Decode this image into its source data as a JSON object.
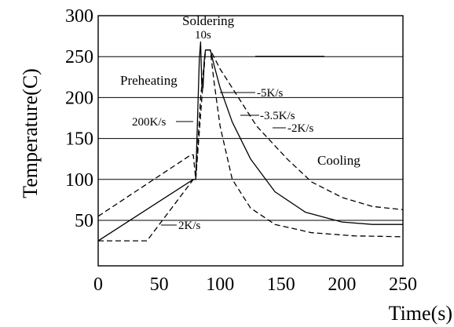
{
  "chart_data": {
    "type": "line",
    "xlabel": "Time(s)",
    "ylabel": "Temperature(C)",
    "xlim": [
      0,
      250
    ],
    "ylim": [
      25,
      300
    ],
    "xticks": [
      0,
      50,
      100,
      150,
      200,
      250
    ],
    "yticks": [
      50,
      100,
      150,
      200,
      250,
      300
    ],
    "grid": "horizontal",
    "series": [
      {
        "style": "dashed",
        "points": [
          [
            0,
            25
          ],
          [
            40,
            25
          ],
          [
            78,
            100
          ],
          [
            80,
            100
          ],
          [
            84,
            200
          ],
          [
            88,
            258
          ],
          [
            92,
            258
          ],
          [
            95,
            220
          ],
          [
            100,
            165
          ],
          [
            110,
            100
          ],
          [
            125,
            65
          ],
          [
            145,
            45
          ],
          [
            175,
            35
          ],
          [
            210,
            31
          ],
          [
            250,
            30
          ]
        ]
      },
      {
        "style": "solid",
        "points": [
          [
            0,
            25
          ],
          [
            78,
            100
          ],
          [
            80,
            100
          ],
          [
            82,
            200
          ],
          [
            83,
            248
          ],
          [
            84,
            268
          ],
          [
            85,
            215
          ],
          [
            86,
            212
          ],
          [
            87,
            245
          ],
          [
            88,
            258
          ],
          [
            92,
            258
          ],
          [
            95,
            240
          ],
          [
            100,
            212
          ],
          [
            110,
            170
          ],
          [
            125,
            125
          ],
          [
            145,
            85
          ],
          [
            170,
            60
          ],
          [
            200,
            48
          ],
          [
            225,
            45
          ],
          [
            250,
            45
          ]
        ]
      },
      {
        "style": "dashed",
        "points": [
          [
            0,
            55
          ],
          [
            76,
            130
          ],
          [
            78,
            130
          ],
          [
            80,
            100
          ],
          [
            88,
            258
          ],
          [
            92,
            258
          ],
          [
            100,
            235
          ],
          [
            115,
            200
          ],
          [
            130,
            165
          ],
          [
            155,
            125
          ],
          [
            175,
            97
          ],
          [
            200,
            78
          ],
          [
            225,
            67
          ],
          [
            250,
            63
          ]
        ]
      }
    ],
    "annotations": {
      "soldering": "Soldering",
      "ten_s": "10s",
      "preheating": "Preheating",
      "rate_200": "200K/s",
      "rate_m5": "-5K/s",
      "rate_m35": "-3.5K/s",
      "rate_m2": "-2K/s",
      "cooling": "Cooling",
      "rate_2": "2K/s"
    }
  }
}
